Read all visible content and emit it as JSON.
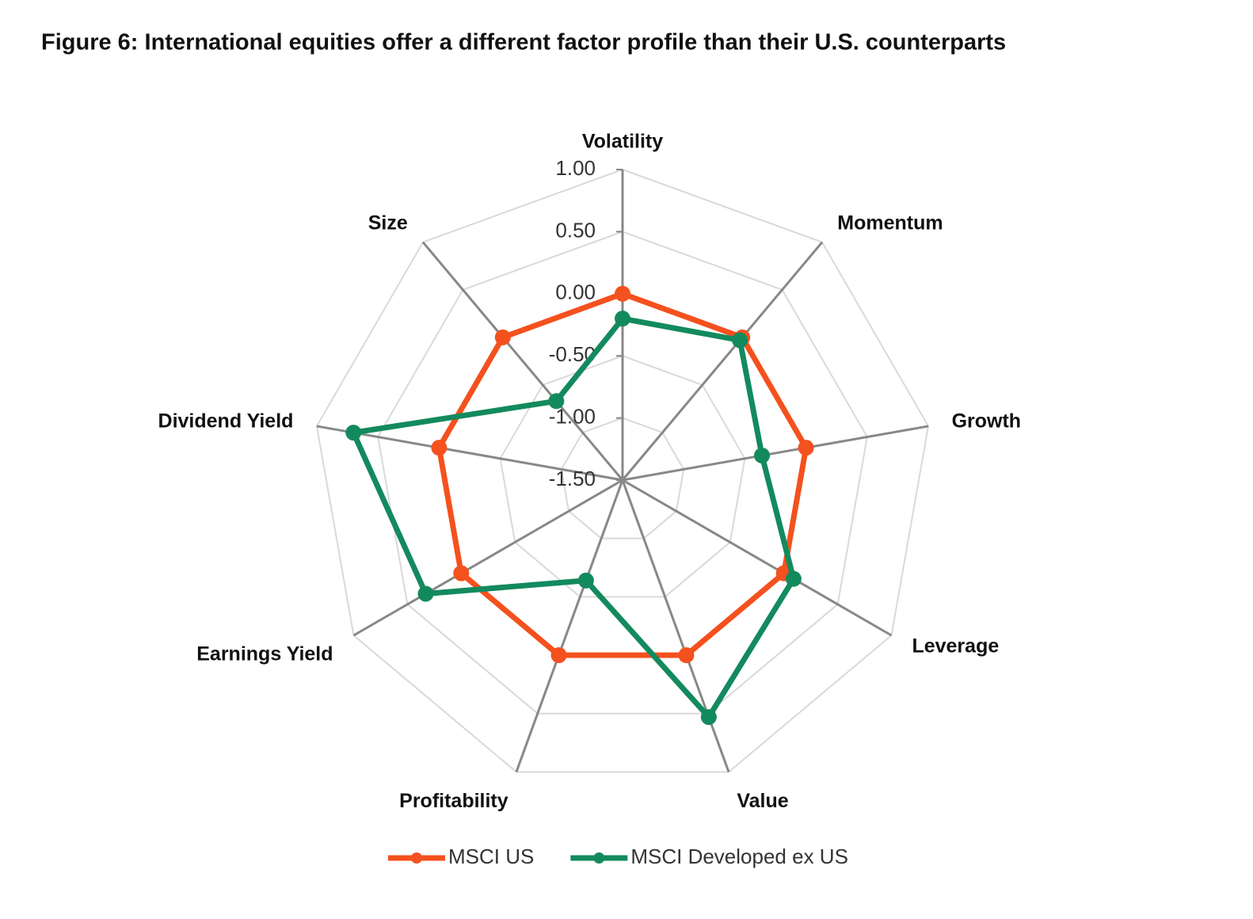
{
  "chart_data": {
    "type": "radar",
    "title": "Figure 6: International equities offer a different factor profile than their U.S. counterparts",
    "categories": [
      "Volatility",
      "Momentum",
      "Growth",
      "Leverage",
      "Value",
      "Profitability",
      "Earnings Yield",
      "Dividend Yield",
      "Size"
    ],
    "series": [
      {
        "name": "MSCI US",
        "color": "#f4511e",
        "values": [
          0.0,
          0.0,
          0.0,
          0.0,
          0.0,
          0.0,
          0.0,
          0.0,
          0.0
        ]
      },
      {
        "name": "MSCI Developed ex US",
        "color": "#138a5e",
        "values": [
          -0.2,
          -0.03,
          -0.36,
          0.09,
          0.53,
          -0.64,
          0.33,
          0.7,
          -0.67
        ]
      }
    ],
    "ylim": [
      -1.5,
      1.0
    ],
    "yticks": [
      {
        "value": -1.5,
        "label": "-1.50"
      },
      {
        "value": -1,
        "label": "-1.00"
      },
      {
        "value": -0.5,
        "label": "-0.50"
      },
      {
        "value": 0,
        "label": "0.00"
      },
      {
        "value": 0.5,
        "label": "0.50"
      },
      {
        "value": 1,
        "label": "1.00"
      }
    ],
    "grid": true,
    "legend": "bottom"
  }
}
